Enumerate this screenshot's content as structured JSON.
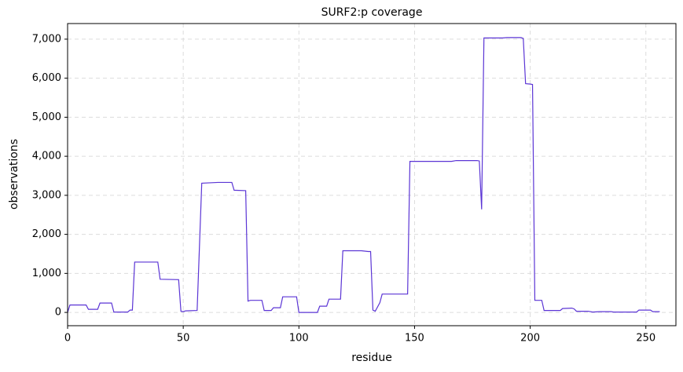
{
  "chart_data": {
    "type": "line",
    "title": "SURF2:p coverage",
    "x_label": "residue",
    "y_label": "observations",
    "x": [
      0,
      1,
      8,
      9,
      13,
      14,
      19,
      20,
      26,
      27,
      28,
      29,
      39,
      40,
      48,
      49,
      50,
      51,
      56,
      58,
      65,
      71,
      72,
      77,
      78,
      79,
      84,
      85,
      88,
      89,
      92,
      93,
      99,
      100,
      108,
      109,
      112,
      113,
      118,
      119,
      127,
      130,
      131,
      132,
      133,
      135,
      136,
      147,
      148,
      166,
      168,
      177,
      178,
      179,
      180,
      188,
      190,
      196,
      197,
      198,
      200,
      201,
      202,
      205,
      206,
      213,
      214,
      218,
      219,
      220,
      225,
      227,
      230,
      235,
      236,
      246,
      247,
      252,
      253,
      256
    ],
    "series": [
      {
        "name": "coverage",
        "color": "#5b35d5",
        "values": [
          0,
          190,
          190,
          80,
          80,
          240,
          240,
          10,
          10,
          60,
          60,
          1290,
          1290,
          850,
          840,
          30,
          20,
          40,
          50,
          3310,
          3330,
          3330,
          3130,
          3120,
          290,
          310,
          310,
          50,
          50,
          120,
          120,
          400,
          400,
          0,
          0,
          160,
          160,
          340,
          340,
          1580,
          1580,
          1560,
          1560,
          60,
          30,
          250,
          470,
          470,
          3870,
          3870,
          3890,
          3890,
          3880,
          2640,
          7030,
          7030,
          7040,
          7040,
          7020,
          5860,
          5850,
          5840,
          310,
          310,
          50,
          50,
          100,
          110,
          90,
          30,
          30,
          10,
          20,
          20,
          10,
          10,
          60,
          60,
          20,
          20
        ]
      }
    ],
    "xlim": [
      0,
      263
    ],
    "ylim": [
      -340,
      7400
    ],
    "xticks": [
      0,
      50,
      100,
      150,
      200,
      250
    ],
    "yticks": [
      0,
      {
        "value": 1000,
        "label": "1,000"
      },
      {
        "value": 2000,
        "label": "2,000"
      },
      {
        "value": 3000,
        "label": "3,000"
      },
      {
        "value": 4000,
        "label": "4,000"
      },
      {
        "value": 5000,
        "label": "5,000"
      },
      {
        "value": 6000,
        "label": "6,000"
      },
      {
        "value": 7000,
        "label": "7,000"
      }
    ],
    "grid": true
  }
}
